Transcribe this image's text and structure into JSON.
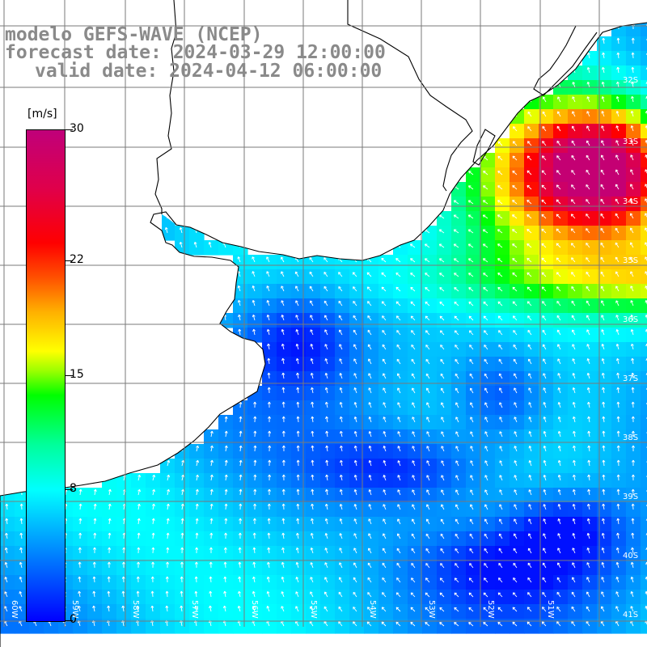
{
  "title": {
    "line1": "modelo GEFS-WAVE (NCEP)",
    "line2": "forecast date: 2024-03-29 12:00:00",
    "line3": "valid date: 2024-04-12 06:00:00"
  },
  "colorbar": {
    "unit": "[m/s]",
    "ticks": [
      {
        "value": 30,
        "label": "30"
      },
      {
        "value": 22,
        "label": "22"
      },
      {
        "value": 15,
        "label": "15"
      },
      {
        "value": 8,
        "label": "8"
      },
      {
        "value": 0,
        "label": "0"
      }
    ],
    "min": 0,
    "max": 30
  },
  "colors": {
    "land": "#ffffff",
    "grid": "#7a7a7a",
    "coast": "#000000",
    "arrow": "#ffffff"
  },
  "lat_labels": [
    "32S",
    "33S",
    "34S",
    "35S",
    "36S",
    "37S",
    "38S",
    "39S",
    "40S",
    "41S"
  ],
  "lon_labels": [
    "60W",
    "59W",
    "58W",
    "57W",
    "56W",
    "55W",
    "54W",
    "53W",
    "52W",
    "51W"
  ]
}
